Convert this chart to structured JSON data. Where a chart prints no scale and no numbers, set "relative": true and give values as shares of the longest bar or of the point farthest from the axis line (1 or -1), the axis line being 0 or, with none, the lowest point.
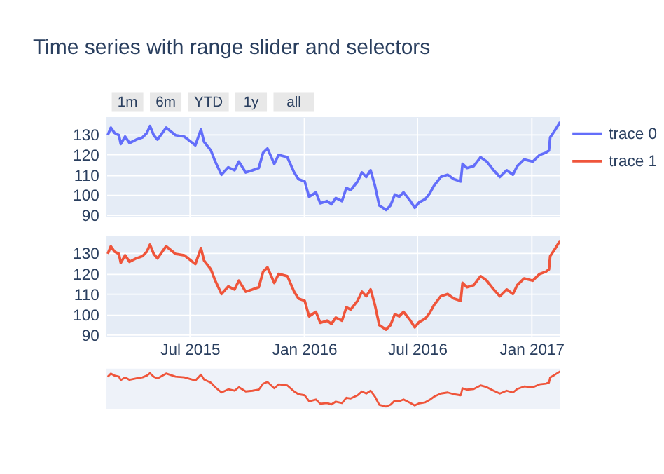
{
  "chart_data": [
    {
      "type": "line",
      "title": "Time series with range slider and selectors",
      "annotations": [
        "1m",
        "6m",
        "YTD",
        "1y",
        "all"
      ],
      "x": [
        "2015-02-19",
        "2015-02-24",
        "2015-03-02",
        "2015-03-09",
        "2015-03-12",
        "2015-03-19",
        "2015-03-26",
        "2015-04-06",
        "2015-04-16",
        "2015-04-23",
        "2015-04-28",
        "2015-05-04",
        "2015-05-10",
        "2015-05-24",
        "2015-06-08",
        "2015-06-22",
        "2015-07-10",
        "2015-07-19",
        "2015-07-24",
        "2015-08-04",
        "2015-08-11",
        "2015-08-21",
        "2015-09-01",
        "2015-09-11",
        "2015-09-18",
        "2015-09-29",
        "2015-10-10",
        "2015-10-20",
        "2015-10-27",
        "2015-11-03",
        "2015-11-14",
        "2015-11-21",
        "2015-12-05",
        "2015-12-16",
        "2015-12-23",
        "2016-01-02",
        "2016-01-09",
        "2016-01-20",
        "2016-01-27",
        "2016-02-07",
        "2016-02-14",
        "2016-02-21",
        "2016-03-02",
        "2016-03-09",
        "2016-03-16",
        "2016-03-27",
        "2016-04-03",
        "2016-04-10",
        "2016-04-17",
        "2016-04-24",
        "2016-05-01",
        "2016-05-12",
        "2016-05-19",
        "2016-05-26",
        "2016-06-02",
        "2016-06-09",
        "2016-06-20",
        "2016-06-27",
        "2016-07-04",
        "2016-07-14",
        "2016-07-21",
        "2016-07-28",
        "2016-08-08",
        "2016-08-19",
        "2016-08-29",
        "2016-09-09",
        "2016-09-12",
        "2016-09-19",
        "2016-09-30",
        "2016-10-11",
        "2016-10-21",
        "2016-11-01",
        "2016-11-11",
        "2016-11-22",
        "2016-12-02",
        "2016-12-09",
        "2016-12-20",
        "2017-01-03",
        "2017-01-14",
        "2017-01-24",
        "2017-01-29",
        "2017-01-31",
        "2017-02-07",
        "2017-02-16"
      ],
      "series": [
        {
          "name": "trace 0",
          "color": "#636efa",
          "values": [
            129.6,
            133.3,
            130.7,
            129.6,
            125.2,
            128.9,
            125.7,
            127.4,
            128.5,
            130.7,
            134.1,
            129.6,
            127.4,
            133.3,
            129.6,
            128.9,
            124.6,
            132.4,
            126.3,
            122,
            116.5,
            110,
            113.7,
            112.2,
            116.5,
            111.1,
            112.2,
            113.3,
            120.9,
            123,
            115.4,
            119.8,
            118.7,
            111.1,
            107.8,
            106.7,
            99.1,
            101.3,
            95.9,
            97,
            95.4,
            98.5,
            97,
            103.5,
            102.4,
            106.7,
            111.1,
            108.9,
            112.2,
            104.6,
            94.8,
            92.6,
            94.8,
            100.2,
            99.1,
            101.3,
            97,
            93.7,
            96.3,
            98,
            100.7,
            104.6,
            108.9,
            110,
            107.8,
            106.7,
            115.4,
            113.3,
            114.3,
            118.7,
            116.5,
            112.2,
            108.9,
            112.2,
            110,
            114.3,
            117.6,
            116.5,
            119.8,
            120.9,
            122,
            128.5,
            131.7,
            136.1
          ]
        }
      ],
      "xlim": [
        "2015-02-17",
        "2017-02-16"
      ],
      "xticks": [
        {
          "value": "2015-07-01",
          "label": null
        },
        {
          "value": "2016-01-01",
          "label": null
        },
        {
          "value": "2016-07-01",
          "label": null
        },
        {
          "value": "2017-01-01",
          "label": null
        }
      ],
      "ylim": [
        89,
        138.5
      ],
      "yticks": [
        90,
        100,
        110,
        120,
        130
      ],
      "grid": true,
      "tick_labels": "y",
      "legend": "right"
    },
    {
      "type": "line",
      "x": [
        "2015-02-19",
        "2015-02-24",
        "2015-03-02",
        "2015-03-09",
        "2015-03-12",
        "2015-03-19",
        "2015-03-26",
        "2015-04-06",
        "2015-04-16",
        "2015-04-23",
        "2015-04-28",
        "2015-05-04",
        "2015-05-10",
        "2015-05-24",
        "2015-06-08",
        "2015-06-22",
        "2015-07-10",
        "2015-07-19",
        "2015-07-24",
        "2015-08-04",
        "2015-08-11",
        "2015-08-21",
        "2015-09-01",
        "2015-09-11",
        "2015-09-18",
        "2015-09-29",
        "2015-10-10",
        "2015-10-20",
        "2015-10-27",
        "2015-11-03",
        "2015-11-14",
        "2015-11-21",
        "2015-12-05",
        "2015-12-16",
        "2015-12-23",
        "2016-01-02",
        "2016-01-09",
        "2016-01-20",
        "2016-01-27",
        "2016-02-07",
        "2016-02-14",
        "2016-02-21",
        "2016-03-02",
        "2016-03-09",
        "2016-03-16",
        "2016-03-27",
        "2016-04-03",
        "2016-04-10",
        "2016-04-17",
        "2016-04-24",
        "2016-05-01",
        "2016-05-12",
        "2016-05-19",
        "2016-05-26",
        "2016-06-02",
        "2016-06-09",
        "2016-06-20",
        "2016-06-27",
        "2016-07-04",
        "2016-07-14",
        "2016-07-21",
        "2016-07-28",
        "2016-08-08",
        "2016-08-19",
        "2016-08-29",
        "2016-09-09",
        "2016-09-12",
        "2016-09-19",
        "2016-09-30",
        "2016-10-11",
        "2016-10-21",
        "2016-11-01",
        "2016-11-11",
        "2016-11-22",
        "2016-12-02",
        "2016-12-09",
        "2016-12-20",
        "2017-01-03",
        "2017-01-14",
        "2017-01-24",
        "2017-01-29",
        "2017-01-31",
        "2017-02-07",
        "2017-02-16"
      ],
      "series": [
        {
          "name": "trace 1",
          "color": "#ef553b",
          "values": [
            129.6,
            133.3,
            130.7,
            129.6,
            125.2,
            128.9,
            125.7,
            127.4,
            128.5,
            130.7,
            134.1,
            129.6,
            127.4,
            133.3,
            129.6,
            128.9,
            124.6,
            132.4,
            126.3,
            122,
            116.5,
            110,
            113.7,
            112.2,
            116.5,
            111.1,
            112.2,
            113.3,
            120.9,
            123,
            115.4,
            119.8,
            118.7,
            111.1,
            107.8,
            106.7,
            99.1,
            101.3,
            95.9,
            97,
            95.4,
            98.5,
            97,
            103.5,
            102.4,
            106.7,
            111.1,
            108.9,
            112.2,
            104.6,
            94.8,
            92.6,
            94.8,
            100.2,
            99.1,
            101.3,
            97,
            93.7,
            96.3,
            98,
            100.7,
            104.6,
            108.9,
            110,
            107.8,
            106.7,
            115.4,
            113.3,
            114.3,
            118.7,
            116.5,
            112.2,
            108.9,
            112.2,
            110,
            114.3,
            117.6,
            116.5,
            119.8,
            120.9,
            122,
            128.5,
            131.7,
            136.1
          ]
        }
      ],
      "xlim": [
        "2015-02-17",
        "2017-02-16"
      ],
      "xticks": [
        {
          "value": "2015-07-01",
          "label": "Jul 2015"
        },
        {
          "value": "2016-01-01",
          "label": "Jan 2016"
        },
        {
          "value": "2016-07-01",
          "label": "Jul 2016"
        },
        {
          "value": "2017-01-01",
          "label": "Jan 2017"
        }
      ],
      "ylim": [
        89,
        138.5
      ],
      "yticks": [
        90,
        100,
        110,
        120,
        130
      ],
      "grid": true,
      "legend": "right"
    },
    {
      "type": "line",
      "x": [
        "2015-02-19",
        "2015-02-24",
        "2015-03-02",
        "2015-03-09",
        "2015-03-12",
        "2015-03-19",
        "2015-03-26",
        "2015-04-06",
        "2015-04-16",
        "2015-04-23",
        "2015-04-28",
        "2015-05-04",
        "2015-05-10",
        "2015-05-24",
        "2015-06-08",
        "2015-06-22",
        "2015-07-10",
        "2015-07-19",
        "2015-07-24",
        "2015-08-04",
        "2015-08-11",
        "2015-08-21",
        "2015-09-01",
        "2015-09-11",
        "2015-09-18",
        "2015-09-29",
        "2015-10-10",
        "2015-10-20",
        "2015-10-27",
        "2015-11-03",
        "2015-11-14",
        "2015-11-21",
        "2015-12-05",
        "2015-12-16",
        "2015-12-23",
        "2016-01-02",
        "2016-01-09",
        "2016-01-20",
        "2016-01-27",
        "2016-02-07",
        "2016-02-14",
        "2016-02-21",
        "2016-03-02",
        "2016-03-09",
        "2016-03-16",
        "2016-03-27",
        "2016-04-03",
        "2016-04-10",
        "2016-04-17",
        "2016-04-24",
        "2016-05-01",
        "2016-05-12",
        "2016-05-19",
        "2016-05-26",
        "2016-06-02",
        "2016-06-09",
        "2016-06-20",
        "2016-06-27",
        "2016-07-04",
        "2016-07-14",
        "2016-07-21",
        "2016-07-28",
        "2016-08-08",
        "2016-08-19",
        "2016-08-29",
        "2016-09-09",
        "2016-09-12",
        "2016-09-19",
        "2016-09-30",
        "2016-10-11",
        "2016-10-21",
        "2016-11-01",
        "2016-11-11",
        "2016-11-22",
        "2016-12-02",
        "2016-12-09",
        "2016-12-20",
        "2017-01-03",
        "2017-01-14",
        "2017-01-24",
        "2017-01-29",
        "2017-01-31",
        "2017-02-07",
        "2017-02-16"
      ],
      "series": [
        {
          "color": "#ef553b",
          "values": [
            0.85,
            0.94,
            0.88,
            0.85,
            0.75,
            0.83,
            0.76,
            0.8,
            0.83,
            0.88,
            0.95,
            0.85,
            0.8,
            0.94,
            0.85,
            0.83,
            0.74,
            0.91,
            0.77,
            0.68,
            0.55,
            0.4,
            0.49,
            0.45,
            0.55,
            0.43,
            0.45,
            0.48,
            0.65,
            0.7,
            0.52,
            0.63,
            0.6,
            0.43,
            0.35,
            0.32,
            0.15,
            0.2,
            0.08,
            0.1,
            0.06,
            0.14,
            0.1,
            0.25,
            0.23,
            0.32,
            0.43,
            0.37,
            0.45,
            0.28,
            0.05,
            0,
            0.05,
            0.17,
            0.15,
            0.2,
            0.1,
            0.03,
            0.09,
            0.12,
            0.19,
            0.28,
            0.37,
            0.4,
            0.35,
            0.32,
            0.52,
            0.48,
            0.5,
            0.6,
            0.55,
            0.45,
            0.37,
            0.45,
            0.4,
            0.5,
            0.57,
            0.55,
            0.63,
            0.65,
            0.68,
            0.83,
            0.9,
            1
          ]
        }
      ],
      "xlim": [
        "2015-02-17",
        "2017-02-16"
      ],
      "relative": true,
      "tick_labels": false
    }
  ]
}
